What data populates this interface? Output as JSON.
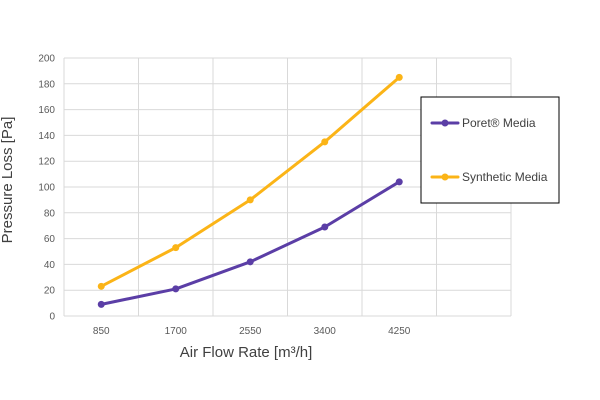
{
  "chart_data": {
    "type": "line",
    "title": "",
    "xlabel": "Air Flow Rate [m³/h]",
    "ylabel": "Pressure Loss [Pa]",
    "categories": [
      "850",
      "1700",
      "2550",
      "3400",
      "4250"
    ],
    "ylim": [
      0,
      200
    ],
    "ytick_step": 20,
    "grid": true,
    "legend_position": "right",
    "series": [
      {
        "name": "Poret® Media",
        "color": "#5b3ea6",
        "values": [
          9,
          21,
          42,
          69,
          104
        ]
      },
      {
        "name": "Synthetic Media",
        "color": "#fbb417",
        "values": [
          23,
          53,
          90,
          135,
          185
        ]
      }
    ]
  }
}
